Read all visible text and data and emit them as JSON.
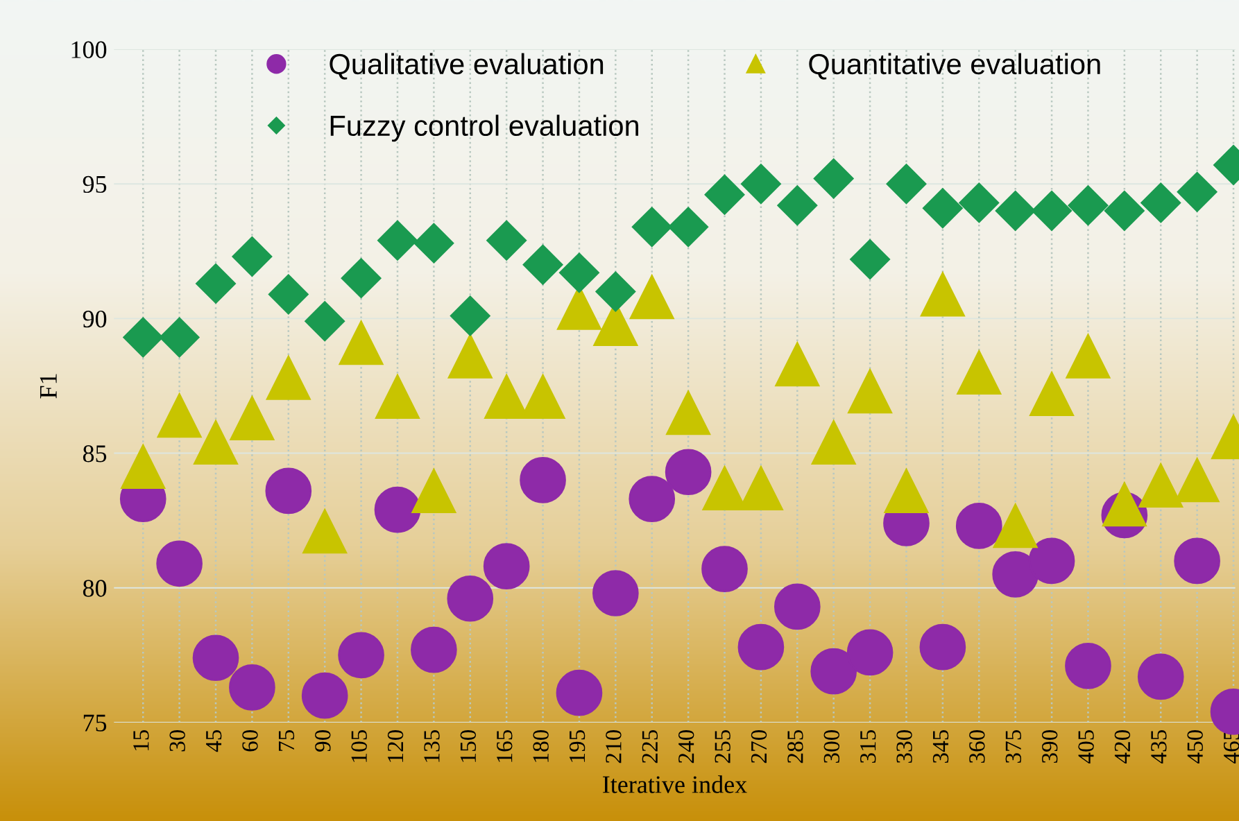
{
  "chart_data": {
    "type": "scatter",
    "xlabel": "Iterative index",
    "ylabel": "F1",
    "categories": [
      "15",
      "30",
      "45",
      "60",
      "75",
      "90",
      "105",
      "120",
      "135",
      "150",
      "165",
      "180",
      "195",
      "210",
      "225",
      "240",
      "255",
      "270",
      "285",
      "300",
      "315",
      "330",
      "345",
      "360",
      "375",
      "390",
      "405",
      "420",
      "435",
      "450",
      "465"
    ],
    "series": [
      {
        "name": "Qualitative evaluation",
        "color": "#8e2aa8",
        "marker": "circle",
        "values": [
          83.3,
          80.9,
          77.4,
          76.3,
          83.6,
          76.0,
          77.5,
          82.9,
          77.7,
          79.6,
          80.8,
          84.0,
          76.1,
          79.8,
          83.3,
          84.3,
          80.7,
          77.8,
          79.3,
          76.9,
          77.6,
          82.4,
          77.8,
          82.3,
          80.5,
          81.0,
          77.1,
          82.7,
          76.7,
          81.0,
          75.4
        ]
      },
      {
        "name": "Quantitative evaluation",
        "color": "#c8c400",
        "marker": "triangle",
        "values": [
          84.5,
          86.4,
          85.4,
          86.3,
          87.8,
          82.1,
          89.1,
          87.1,
          83.6,
          88.6,
          87.1,
          87.1,
          90.4,
          89.8,
          90.8,
          86.5,
          83.7,
          83.7,
          88.3,
          85.4,
          87.3,
          83.6,
          90.9,
          88.0,
          82.3,
          87.2,
          88.6,
          83.1,
          83.8,
          84.0,
          85.6
        ]
      },
      {
        "name": "Fuzzy control evaluation",
        "color": "#1a9a50",
        "marker": "diamond",
        "values": [
          89.3,
          89.3,
          91.3,
          92.3,
          90.9,
          89.9,
          91.5,
          92.9,
          92.8,
          90.1,
          92.9,
          92.0,
          91.7,
          91.0,
          93.4,
          93.4,
          94.6,
          95.0,
          94.2,
          95.2,
          92.2,
          95.0,
          94.1,
          94.3,
          94.0,
          94.0,
          94.2,
          94.0,
          94.3,
          94.7,
          95.7
        ]
      }
    ],
    "ylim": [
      75,
      100
    ],
    "yticks": [
      75,
      80,
      85,
      90,
      95,
      100
    ],
    "grid": true,
    "legend": "top"
  }
}
